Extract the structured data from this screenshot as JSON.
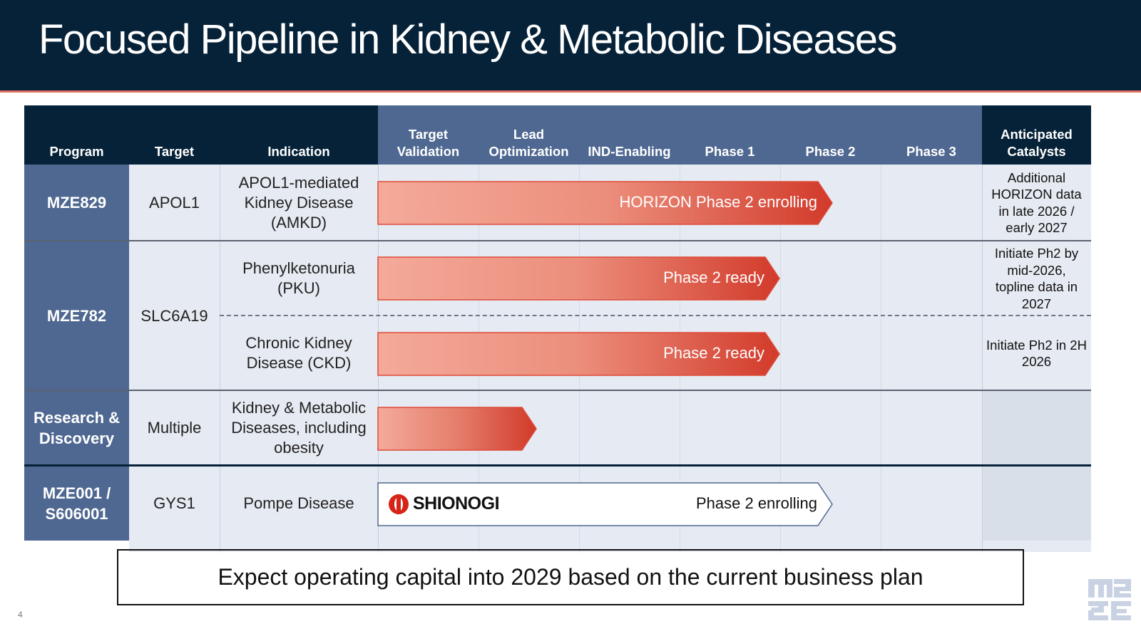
{
  "title": "Focused Pipeline in Kidney & Metabolic Diseases",
  "columns": {
    "program": "Program",
    "target": "Target",
    "indication": "Indication",
    "target_validation": "Target Validation",
    "lead_optimization": "Lead Optimization",
    "ind_enabling": "IND-Enabling",
    "phase1": "Phase 1",
    "phase2": "Phase 2",
    "phase3": "Phase 3",
    "catalysts": "Anticipated Catalysts"
  },
  "rows": {
    "mze829": {
      "program": "MZE829",
      "target": "APOL1",
      "indication": "APOL1-mediated Kidney Disease (AMKD)",
      "bar_label": "HORIZON Phase 2 enrolling",
      "catalyst": "Additional HORIZON data in late 2026 / early 2027"
    },
    "mze782": {
      "program": "MZE782",
      "target": "SLC6A19",
      "pku": {
        "indication": "Phenylketonuria (PKU)",
        "bar_label": "Phase 2 ready",
        "catalyst": "Initiate Ph2 by mid-2026, topline data in 2027"
      },
      "ckd": {
        "indication": "Chronic Kidney Disease (CKD)",
        "bar_label": "Phase 2 ready",
        "catalyst": "Initiate Ph2 in 2H 2026"
      }
    },
    "research": {
      "program": "Research & Discovery",
      "target": "Multiple",
      "indication": "Kidney & Metabolic Diseases, including obesity"
    },
    "mze001": {
      "program": "MZE001 / S606001",
      "target": "GYS1",
      "indication": "Pompe Disease",
      "partner": "SHIONOGI",
      "bar_label": "Phase 2 enrolling"
    }
  },
  "footer": "Expect operating capital into 2029 based on the current business plan",
  "page_number": "4",
  "colors": {
    "navy": "#062238",
    "header_blue": "#4f6891",
    "cell_light": "#e6eaf2",
    "bar_start": "#f4aa9a",
    "bar_end": "#d23a2a",
    "accent_line": "#e07060"
  },
  "icons": {
    "partner_logo": "shionogi-logo",
    "company_logo": "maze-logo"
  }
}
